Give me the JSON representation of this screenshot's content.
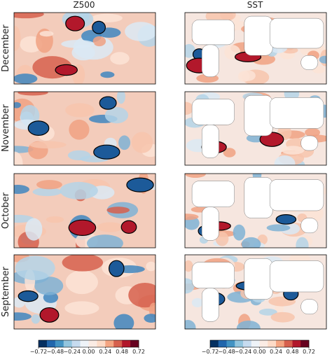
{
  "panels": {
    "columns": [
      "Z500",
      "SST"
    ],
    "rows": [
      "December",
      "November",
      "October",
      "September"
    ]
  },
  "colorbars": [
    {
      "lim": [
        -0.72,
        0.72
      ],
      "ticks": [
        {
          "value": -0.72,
          "label": "−0.72"
        },
        {
          "value": -0.48,
          "label": "−0.48"
        },
        {
          "value": -0.24,
          "label": "−0.24"
        },
        {
          "value": 0,
          "label": "0.00"
        },
        0.24,
        0.48,
        0.72
      ],
      "colors": [
        "#053061",
        "#2166ac",
        "#4393c3",
        "#92c5de",
        "#c6dbef",
        "#eef3f8",
        "#fbece4",
        "#fddbc7",
        "#f4a582",
        "#d6604d",
        "#b2182b",
        "#67001f"
      ]
    },
    {
      "lim": [
        -0.72,
        0.72
      ],
      "ticks": [
        {
          "value": -0.72,
          "label": "−0.72"
        },
        {
          "value": -0.48,
          "label": "−0.48"
        },
        {
          "value": -0.24,
          "label": "−0.24"
        },
        {
          "value": 0,
          "label": "0.00"
        },
        0.24,
        0.48,
        0.72
      ],
      "colors": [
        "#053061",
        "#2166ac",
        "#4393c3",
        "#92c5de",
        "#c6dbef",
        "#eef3f8",
        "#fbece4",
        "#fddbc7",
        "#f4a582",
        "#d6604d",
        "#b2182b",
        "#67001f"
      ]
    }
  ]
}
